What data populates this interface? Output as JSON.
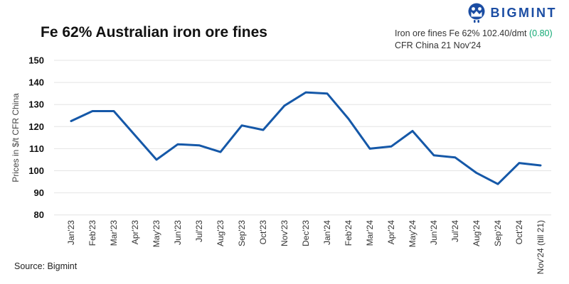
{
  "logo": {
    "brand": "BIGMINT",
    "color": "#1b4da3"
  },
  "title": "Fe 62% Australian iron ore fines",
  "quote": {
    "line1_prefix": "Iron ore fines Fe 62% 102.40/dmt ",
    "change": "(0.80)",
    "change_color": "#0fa873",
    "line2": "CFR China 21 Nov'24"
  },
  "source": "Source: Bigmint",
  "colors": {
    "line": "#1558a8",
    "grid": "#e4e4e4",
    "ytick": "#111111",
    "xtick": "#333333",
    "axis_title": "#444444"
  },
  "chart_data": {
    "type": "line",
    "title": "Fe 62% Australian iron ore fines",
    "xlabel": "",
    "ylabel": "Prices in $/t CFR China",
    "ylim": [
      80,
      150
    ],
    "ytick_step": 10,
    "grid": true,
    "legend": false,
    "categories": [
      "Jan'23",
      "Feb'23",
      "Mar'23",
      "Apr'23",
      "May'23",
      "Jun'23",
      "Jul'23",
      "Aug'23",
      "Sep'23",
      "Oct'23",
      "Nov'23",
      "Dec'23",
      "Jan'24",
      "Feb'24",
      "Mar'24",
      "Apr'24",
      "May'24",
      "Jun'24",
      "Jul'24",
      "Aug'24",
      "Sep'24",
      "Oct'24",
      "Nov'24 (till 21)"
    ],
    "series": [
      {
        "name": "Fe 62% Australian iron ore fines CFR China",
        "values": [
          122.5,
          127,
          127,
          116,
          105,
          112,
          111.5,
          108.5,
          120.5,
          118.5,
          129.5,
          135.5,
          135,
          123.5,
          110,
          111,
          118,
          107,
          106,
          99,
          94,
          103.5,
          102.4
        ]
      }
    ]
  }
}
